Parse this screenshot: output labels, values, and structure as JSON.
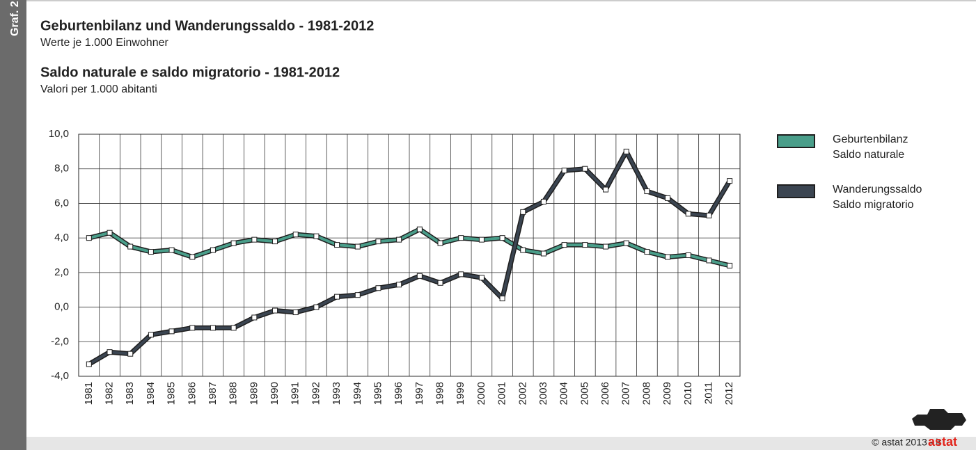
{
  "chart_data": {
    "type": "line",
    "side_label": "Graf. 2",
    "title": "Geburtenbilanz und Wanderungssaldo - 1981-2012",
    "subtitle": "Werte je 1.000 Einwohner",
    "title2": "Saldo naturale e saldo migratorio - 1981-2012",
    "subtitle2": "Valori per 1.000 abitanti",
    "categories": [
      "1981",
      "1982",
      "1983",
      "1984",
      "1985",
      "1986",
      "1987",
      "1988",
      "1989",
      "1990",
      "1991",
      "1992",
      "1993",
      "1994",
      "1995",
      "1996",
      "1997",
      "1998",
      "1999",
      "2000",
      "2001",
      "2002",
      "2003",
      "2004",
      "2005",
      "2006",
      "2007",
      "2008",
      "2009",
      "2010",
      "2011",
      "2012"
    ],
    "series": [
      {
        "name": "Geburtenbilanz\nSaldo naturale",
        "color": "#4a9e8a",
        "values": [
          4.0,
          4.3,
          3.5,
          3.2,
          3.3,
          2.9,
          3.3,
          3.7,
          3.9,
          3.8,
          4.2,
          4.1,
          3.6,
          3.5,
          3.8,
          3.9,
          4.5,
          3.7,
          4.0,
          3.9,
          4.0,
          3.3,
          3.1,
          3.6,
          3.6,
          3.5,
          3.7,
          3.2,
          2.9,
          3.0,
          2.7,
          2.4
        ]
      },
      {
        "name": "Wanderungssaldo\nSaldo migratorio",
        "color": "#3b4551",
        "values": [
          -3.3,
          -2.6,
          -2.7,
          -1.6,
          -1.4,
          -1.2,
          -1.2,
          -1.2,
          -0.6,
          -0.2,
          -0.3,
          0.0,
          0.6,
          0.7,
          1.1,
          1.3,
          1.8,
          1.4,
          1.9,
          1.7,
          0.5,
          5.5,
          6.1,
          7.9,
          8.0,
          6.8,
          9.0,
          6.7,
          6.3,
          5.4,
          5.3,
          7.3
        ]
      }
    ],
    "ylim": [
      -4,
      10
    ],
    "yticks": [
      {
        "value": -4,
        "label": "-4,0"
      },
      {
        "value": -2,
        "label": "-2,0"
      },
      {
        "value": 0,
        "label": "0,0"
      },
      {
        "value": 2,
        "label": "2,0"
      },
      {
        "value": 4,
        "label": "4,0"
      },
      {
        "value": 6,
        "label": "6,0"
      },
      {
        "value": 8,
        "label": "8,0"
      },
      {
        "value": 10,
        "label": "10,0"
      }
    ],
    "grid": true,
    "legend": "right",
    "copyright": "© astat 2013 - lr",
    "logo": "astat"
  }
}
